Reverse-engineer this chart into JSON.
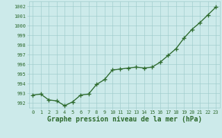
{
  "x": [
    0,
    1,
    2,
    3,
    4,
    5,
    6,
    7,
    8,
    9,
    10,
    11,
    12,
    13,
    14,
    15,
    16,
    17,
    18,
    19,
    20,
    21,
    22,
    23
  ],
  "y": [
    992.8,
    992.9,
    992.3,
    992.2,
    991.7,
    992.1,
    992.8,
    992.9,
    993.9,
    994.4,
    995.4,
    995.5,
    995.6,
    995.7,
    995.6,
    995.7,
    996.2,
    996.9,
    997.6,
    998.7,
    999.6,
    1000.3,
    1001.1,
    1001.9
  ],
  "line_color": "#2d6a2d",
  "marker": "+",
  "marker_size": 4,
  "marker_color": "#2d6a2d",
  "line_width": 1.0,
  "background_color": "#cceaea",
  "grid_color": "#a0cccc",
  "ylabel_ticks": [
    992,
    993,
    994,
    995,
    996,
    997,
    998,
    999,
    1000,
    1001,
    1002
  ],
  "xlabel": "Graphe pression niveau de la mer (hPa)",
  "xlabel_fontsize": 7,
  "tick_label_color": "#2d6a2d",
  "tick_fontsize": 5,
  "xlim": [
    -0.5,
    23.5
  ],
  "ylim": [
    991.5,
    1002.5
  ]
}
